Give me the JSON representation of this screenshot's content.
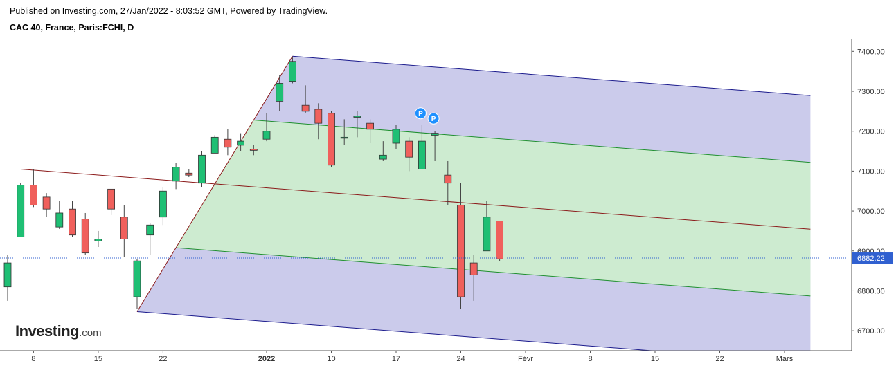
{
  "header": {
    "published": "Published on Investing.com, 27/Jan/2022 - 8:03:52 GMT, Powered by TradingView.",
    "instrument": "CAC 40, France, Paris:FCHI, D"
  },
  "logo": {
    "main": "Investing",
    "sub": ".com"
  },
  "chart_data": {
    "type": "candlestick",
    "ylim": [
      6650,
      7430
    ],
    "y_ticks": [
      6700,
      6800,
      6900,
      7000,
      7100,
      7200,
      7300,
      7400
    ],
    "y_tick_labels": [
      "6700.00",
      "6800.00",
      "6900.00",
      "7000.00",
      "7100.00",
      "7200.00",
      "7300.00",
      "7400.00"
    ],
    "x_ticks": [
      {
        "label": "8",
        "bar": 2
      },
      {
        "label": "15",
        "bar": 7
      },
      {
        "label": "22",
        "bar": 12
      },
      {
        "label": "2022",
        "bar": 20,
        "bold": true
      },
      {
        "label": "10",
        "bar": 25
      },
      {
        "label": "17",
        "bar": 30
      },
      {
        "label": "24",
        "bar": 35
      },
      {
        "label": "Févr",
        "bar": 40
      },
      {
        "label": "8",
        "bar": 45
      },
      {
        "label": "15",
        "bar": 50
      },
      {
        "label": "22",
        "bar": 55
      },
      {
        "label": "Mars",
        "bar": 60
      }
    ],
    "last_price": 6882.22,
    "last_price_label": "6882.22",
    "colors": {
      "up": "#1fbf74",
      "down": "#f0605c",
      "wick": "#444444",
      "last_price": "#3060d0"
    },
    "candles": [
      {
        "bar": 0,
        "o": 6810,
        "h": 6890,
        "l": 6775,
        "c": 6870
      },
      {
        "bar": 1,
        "o": 6935,
        "h": 7070,
        "l": 6935,
        "c": 7065
      },
      {
        "bar": 2,
        "o": 7065,
        "h": 7105,
        "l": 7010,
        "c": 7015
      },
      {
        "bar": 3,
        "o": 7035,
        "h": 7045,
        "l": 6985,
        "c": 7005
      },
      {
        "bar": 4,
        "o": 6960,
        "h": 7025,
        "l": 6955,
        "c": 6995
      },
      {
        "bar": 5,
        "o": 7005,
        "h": 7025,
        "l": 6935,
        "c": 6940
      },
      {
        "bar": 6,
        "o": 6980,
        "h": 6995,
        "l": 6890,
        "c": 6895
      },
      {
        "bar": 7,
        "o": 6925,
        "h": 6950,
        "l": 6910,
        "c": 6930
      },
      {
        "bar": 8,
        "o": 7055,
        "h": 7055,
        "l": 6990,
        "c": 7005
      },
      {
        "bar": 9,
        "o": 6985,
        "h": 7015,
        "l": 6885,
        "c": 6930
      },
      {
        "bar": 10,
        "o": 6785,
        "h": 6880,
        "l": 6755,
        "c": 6875
      },
      {
        "bar": 11,
        "o": 6940,
        "h": 6970,
        "l": 6890,
        "c": 6965
      },
      {
        "bar": 12,
        "o": 6985,
        "h": 7060,
        "l": 6965,
        "c": 7050
      },
      {
        "bar": 13,
        "o": 7075,
        "h": 7120,
        "l": 7055,
        "c": 7110
      },
      {
        "bar": 14,
        "o": 7095,
        "h": 7105,
        "l": 7085,
        "c": 7090
      },
      {
        "bar": 15,
        "o": 7070,
        "h": 7150,
        "l": 7060,
        "c": 7140
      },
      {
        "bar": 16,
        "o": 7145,
        "h": 7190,
        "l": 7145,
        "c": 7185
      },
      {
        "bar": 17,
        "o": 7180,
        "h": 7205,
        "l": 7140,
        "c": 7160
      },
      {
        "bar": 18,
        "o": 7165,
        "h": 7195,
        "l": 7150,
        "c": 7175
      },
      {
        "bar": 19,
        "o": 7155,
        "h": 7165,
        "l": 7140,
        "c": 7152
      },
      {
        "bar": 20,
        "o": 7180,
        "h": 7245,
        "l": 7175,
        "c": 7200
      },
      {
        "bar": 21,
        "o": 7275,
        "h": 7340,
        "l": 7250,
        "c": 7320
      },
      {
        "bar": 22,
        "o": 7325,
        "h": 7385,
        "l": 7320,
        "c": 7375
      },
      {
        "bar": 23,
        "o": 7265,
        "h": 7315,
        "l": 7245,
        "c": 7250
      },
      {
        "bar": 24,
        "o": 7255,
        "h": 7270,
        "l": 7180,
        "c": 7220
      },
      {
        "bar": 25,
        "o": 7245,
        "h": 7250,
        "l": 7110,
        "c": 7115
      },
      {
        "bar": 26,
        "o": 7185,
        "h": 7230,
        "l": 7165,
        "c": 7185
      },
      {
        "bar": 27,
        "o": 7235,
        "h": 7250,
        "l": 7185,
        "c": 7238
      },
      {
        "bar": 28,
        "o": 7220,
        "h": 7230,
        "l": 7170,
        "c": 7205
      },
      {
        "bar": 29,
        "o": 7130,
        "h": 7175,
        "l": 7125,
        "c": 7140
      },
      {
        "bar": 30,
        "o": 7170,
        "h": 7215,
        "l": 7155,
        "c": 7205
      },
      {
        "bar": 31,
        "o": 7175,
        "h": 7185,
        "l": 7100,
        "c": 7135
      },
      {
        "bar": 32,
        "o": 7105,
        "h": 7215,
        "l": 7105,
        "c": 7175
      },
      {
        "bar": 33,
        "o": 7190,
        "h": 7200,
        "l": 7125,
        "c": 7195
      },
      {
        "bar": 34,
        "o": 7090,
        "h": 7125,
        "l": 7015,
        "c": 7070
      },
      {
        "bar": 35,
        "o": 7015,
        "h": 7070,
        "l": 6755,
        "c": 6785
      },
      {
        "bar": 36,
        "o": 6870,
        "h": 6890,
        "l": 6775,
        "c": 6840
      },
      {
        "bar": 37,
        "o": 6900,
        "h": 7025,
        "l": 6900,
        "c": 6985
      },
      {
        "bar": 38,
        "o": 6975,
        "h": 6975,
        "l": 6875,
        "c": 6880
      }
    ],
    "pivot_markers": [
      {
        "label": "P",
        "bar": 32,
        "price": 7245
      },
      {
        "label": "P",
        "bar": 33,
        "price": 7232
      }
    ],
    "pitchfork": {
      "pivot_a": {
        "bar": 1,
        "price": 7105
      },
      "pivot_b": {
        "bar": 22,
        "price": 7388
      },
      "pivot_c": {
        "bar": 10,
        "price": 6748
      },
      "end_bar": 62,
      "outer_color": "#1a1a8c",
      "inner_color": "#1f8f2f",
      "median_color": "#8b1a1a",
      "outer_fill": "#cbcbeb",
      "inner_fill": "#cdebd0"
    }
  }
}
